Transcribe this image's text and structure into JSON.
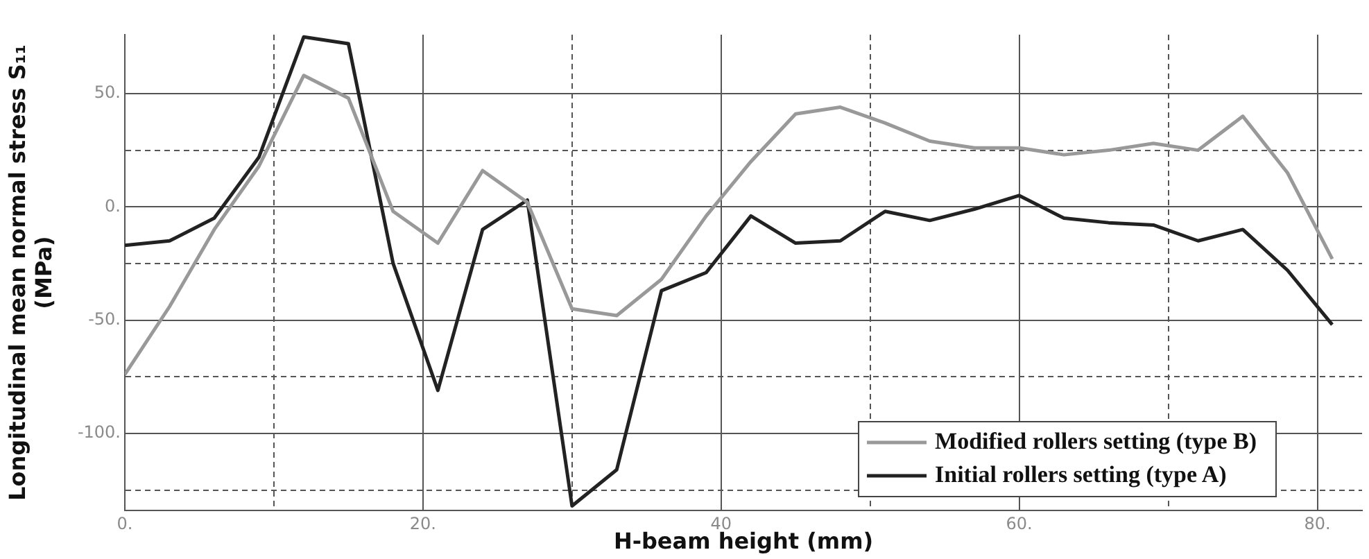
{
  "chart_data": {
    "type": "line",
    "xlabel": "H-beam height (mm)",
    "ylabel": "Longitudinal mean normal stress S₁₁\n(MPa)",
    "x": [
      0,
      3,
      6,
      9,
      12,
      15,
      18,
      21,
      24,
      27,
      30,
      33,
      36,
      39,
      42,
      45,
      48,
      51,
      54,
      57,
      60,
      63,
      66,
      69,
      72,
      75,
      78,
      81
    ],
    "series": [
      {
        "name": "Modified rollers setting (type B)",
        "color": "#999999",
        "values": [
          -74,
          -44,
          -10,
          18,
          58,
          48,
          -2,
          -16,
          16,
          2,
          -45,
          -48,
          -32,
          -4,
          20,
          41,
          44,
          37,
          29,
          26,
          26,
          23,
          25,
          28,
          25,
          40,
          15,
          -23
        ]
      },
      {
        "name": "Initial rollers setting (type A)",
        "color": "#222222",
        "values": [
          -17,
          -15,
          -5,
          22,
          75,
          72,
          -25,
          -81,
          -10,
          3,
          -132,
          -116,
          -37,
          -29,
          -4,
          -16,
          -15,
          -2,
          -6,
          -1,
          5,
          -5,
          -7,
          -8,
          -15,
          -10,
          -28,
          -52
        ]
      }
    ],
    "xlim": [
      0,
      83
    ],
    "xticks": [
      {
        "value": 0,
        "label": "0."
      },
      {
        "value": 10,
        "label": null
      },
      {
        "value": 20,
        "label": "20."
      },
      {
        "value": 30,
        "label": null
      },
      40,
      {
        "value": 50,
        "label": null
      },
      {
        "value": 60,
        "label": "60."
      },
      {
        "value": 70,
        "label": null
      },
      {
        "value": 80,
        "label": "80."
      }
    ],
    "ylim": [
      -134,
      76
    ],
    "yticks": [
      {
        "value": -125,
        "label": null
      },
      {
        "value": -100,
        "label": "-100."
      },
      {
        "value": -75,
        "label": null
      },
      {
        "value": -50,
        "label": "-50."
      },
      {
        "value": -25,
        "label": null
      },
      {
        "value": 0,
        "label": "0."
      },
      {
        "value": 25,
        "label": null
      },
      {
        "value": 50,
        "label": "50."
      }
    ],
    "grid": true,
    "legend": "bottom right",
    "marker": "none",
    "line_style": "solid"
  }
}
